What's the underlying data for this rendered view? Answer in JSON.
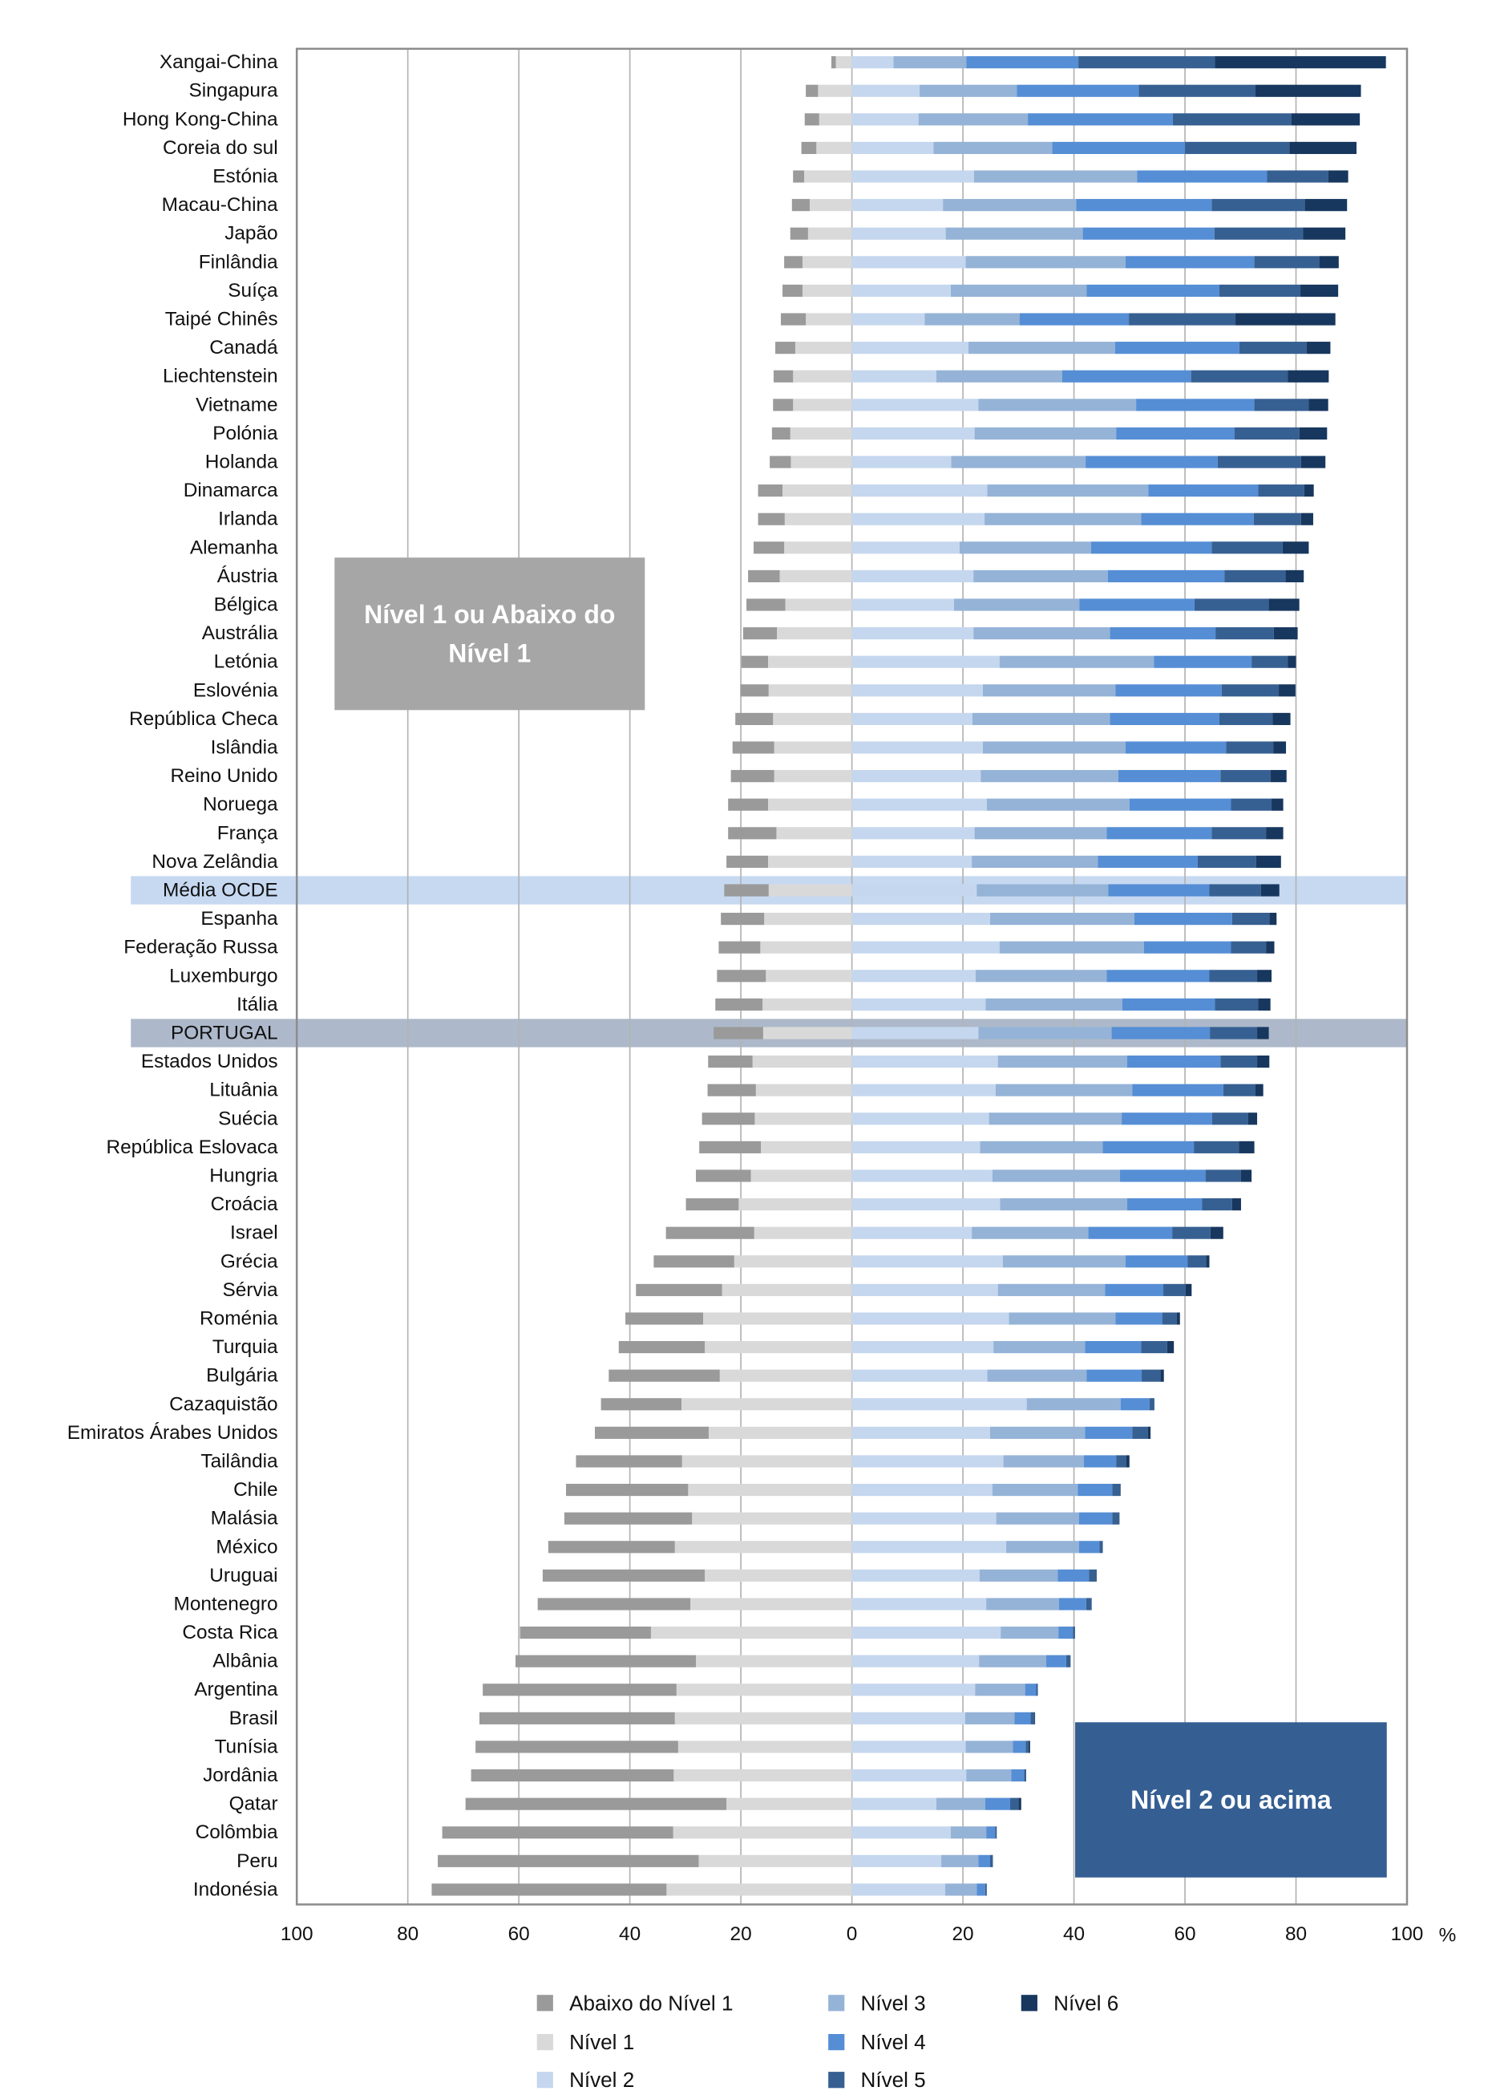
{
  "chart_data": {
    "type": "diverging-stacked-bar",
    "categories": [
      "Xangai-China",
      "Singapura",
      "Hong Kong-China",
      "Coreia do sul",
      "Estónia",
      "Macau-China",
      "Japão",
      "Finlândia",
      "Suíça",
      "Taipé Chinês",
      "Canadá",
      "Liechtenstein",
      "Vietname",
      "Polónia",
      "Holanda",
      "Dinamarca",
      "Irlanda",
      "Alemanha",
      "Áustria",
      "Bélgica",
      "Austrália",
      "Letónia",
      "Eslovénia",
      "República Checa",
      "Islândia",
      "Reino Unido",
      "Noruega",
      "França",
      "Nova Zelândia",
      "Média OCDE",
      "Espanha",
      "Federação Russa",
      "Luxemburgo",
      "Itália",
      "PORTUGAL",
      "Estados Unidos",
      "Lituânia",
      "Suécia",
      "República Eslovaca",
      "Hungria",
      "Croácia",
      "Israel",
      "Grécia",
      "Sérvia",
      "Roménia",
      "Turquia",
      "Bulgária",
      "Cazaquistão",
      "Emiratos Árabes Unidos",
      "Tailândia",
      "Chile",
      "Malásia",
      "México",
      "Uruguai",
      "Montenegro",
      "Costa Rica",
      "Albânia",
      "Argentina",
      "Brasil",
      "Tunísia",
      "Jordânia",
      "Qatar",
      "Colômbia",
      "Peru",
      "Indonésia"
    ],
    "series": [
      {
        "name": "Abaixo do Nível 1",
        "color": "#9a9a9a",
        "direction": "left",
        "values": [
          0.8,
          2.2,
          2.6,
          2.7,
          2.0,
          3.2,
          3.2,
          3.3,
          3.6,
          4.5,
          3.6,
          3.5,
          3.6,
          3.3,
          3.8,
          4.4,
          4.8,
          5.5,
          5.7,
          7.0,
          6.1,
          4.8,
          5.1,
          6.8,
          7.5,
          7.8,
          7.2,
          8.7,
          7.5,
          8.0,
          7.8,
          7.5,
          8.8,
          8.5,
          8.9,
          8.0,
          8.7,
          9.5,
          11.1,
          9.9,
          9.5,
          15.9,
          14.5,
          15.5,
          14.0,
          15.5,
          20.0,
          14.5,
          20.5,
          19.1,
          22.0,
          23.0,
          22.8,
          29.2,
          27.5,
          23.6,
          32.5,
          34.9,
          35.2,
          36.5,
          36.5,
          47.0,
          41.6,
          47.0,
          42.3
        ]
      },
      {
        "name": "Nível 1",
        "color": "#d9d9d9",
        "direction": "left",
        "values": [
          2.9,
          6.1,
          5.9,
          6.4,
          8.6,
          7.6,
          7.9,
          8.9,
          8.9,
          8.3,
          10.2,
          10.6,
          10.6,
          11.1,
          11.0,
          12.5,
          12.1,
          12.2,
          13.0,
          12.0,
          13.5,
          15.1,
          15.0,
          14.2,
          14.0,
          14.0,
          15.1,
          13.6,
          15.1,
          15.0,
          15.8,
          16.5,
          15.5,
          16.1,
          16.0,
          17.9,
          17.3,
          17.5,
          16.4,
          18.2,
          20.4,
          17.6,
          21.2,
          23.4,
          26.8,
          26.5,
          23.8,
          30.7,
          25.8,
          30.6,
          29.5,
          28.8,
          31.9,
          26.5,
          29.1,
          36.2,
          28.1,
          31.6,
          31.9,
          31.3,
          32.1,
          22.6,
          32.2,
          27.6,
          33.4
        ]
      },
      {
        "name": "Nível 2",
        "color": "#c5d7ee",
        "direction": "right",
        "values": [
          7.5,
          12.2,
          12.0,
          14.7,
          22.0,
          16.4,
          16.9,
          20.5,
          17.8,
          13.1,
          21.0,
          15.2,
          22.8,
          22.1,
          17.9,
          24.4,
          23.9,
          19.4,
          21.9,
          18.4,
          21.9,
          26.6,
          23.6,
          21.7,
          23.6,
          23.2,
          24.3,
          22.1,
          21.6,
          22.5,
          24.9,
          26.6,
          22.3,
          24.1,
          22.8,
          26.3,
          25.9,
          24.7,
          23.1,
          25.3,
          26.7,
          21.6,
          27.2,
          26.3,
          28.3,
          25.5,
          24.4,
          31.5,
          24.9,
          27.3,
          25.3,
          26.0,
          27.8,
          23.0,
          24.2,
          26.8,
          22.9,
          22.2,
          20.4,
          20.5,
          20.6,
          15.2,
          17.8,
          16.1,
          16.8
        ]
      },
      {
        "name": "Nível 3",
        "color": "#95b3d7",
        "direction": "right",
        "values": [
          13.1,
          17.5,
          19.7,
          21.4,
          29.4,
          24.0,
          24.7,
          28.8,
          24.5,
          17.1,
          26.4,
          22.7,
          28.4,
          25.5,
          24.2,
          29.0,
          28.2,
          23.7,
          24.2,
          22.6,
          24.6,
          27.8,
          23.9,
          24.8,
          25.7,
          24.8,
          25.7,
          23.8,
          22.7,
          23.7,
          26.0,
          26.0,
          23.6,
          24.6,
          24.0,
          23.3,
          24.6,
          23.9,
          22.1,
          23.0,
          22.9,
          21.0,
          22.1,
          19.3,
          19.2,
          16.5,
          17.9,
          16.9,
          17.1,
          14.5,
          15.4,
          14.9,
          13.1,
          14.1,
          13.1,
          10.4,
          12.1,
          9.0,
          8.9,
          8.5,
          8.1,
          8.8,
          6.4,
          6.7,
          5.7
        ]
      },
      {
        "name": "Nível 4",
        "color": "#558ed5",
        "direction": "right",
        "values": [
          20.2,
          22.0,
          26.1,
          23.9,
          23.4,
          24.4,
          23.7,
          23.2,
          23.9,
          19.7,
          22.4,
          23.2,
          21.3,
          21.3,
          23.8,
          19.8,
          20.3,
          21.7,
          21.0,
          20.7,
          19.0,
          17.6,
          19.1,
          19.7,
          18.1,
          18.4,
          18.3,
          18.9,
          18.0,
          18.2,
          17.6,
          15.7,
          18.5,
          16.7,
          17.7,
          16.8,
          16.4,
          16.3,
          16.4,
          15.4,
          13.5,
          15.1,
          11.2,
          10.5,
          8.4,
          10.1,
          9.9,
          5.2,
          8.5,
          5.8,
          6.2,
          6.0,
          3.7,
          5.6,
          4.9,
          2.6,
          3.6,
          2.0,
          2.9,
          2.3,
          2.3,
          4.5,
          1.6,
          2.1,
          1.5
        ]
      },
      {
        "name": "Nível 5",
        "color": "#376092",
        "direction": "right",
        "values": [
          24.6,
          21.0,
          21.4,
          18.8,
          11.0,
          16.8,
          16.0,
          11.7,
          14.6,
          19.2,
          12.1,
          17.4,
          9.8,
          11.7,
          15.0,
          8.3,
          8.5,
          12.8,
          11.0,
          13.4,
          10.5,
          6.5,
          10.3,
          9.6,
          8.5,
          9.0,
          7.3,
          9.8,
          10.5,
          9.3,
          6.7,
          6.3,
          8.6,
          7.8,
          8.5,
          6.6,
          5.8,
          6.5,
          8.1,
          6.4,
          5.4,
          6.9,
          3.3,
          4.0,
          2.6,
          4.7,
          3.4,
          0.9,
          2.8,
          1.8,
          1.4,
          1.2,
          0.6,
          1.3,
          1.0,
          0.4,
          0.8,
          0.3,
          0.7,
          0.5,
          0.4,
          1.5,
          0.3,
          0.5,
          0.3
        ]
      },
      {
        "name": "Nível 6",
        "color": "#17375e",
        "direction": "right",
        "values": [
          30.8,
          19.0,
          12.3,
          12.1,
          3.6,
          7.6,
          7.6,
          3.5,
          6.8,
          18.0,
          4.3,
          7.4,
          3.5,
          5.0,
          4.4,
          1.7,
          2.2,
          4.7,
          3.3,
          5.5,
          4.3,
          1.5,
          3.0,
          3.2,
          2.3,
          2.9,
          2.1,
          3.1,
          4.5,
          3.3,
          1.3,
          1.5,
          2.6,
          2.2,
          2.1,
          2.2,
          1.4,
          1.6,
          2.8,
          1.9,
          1.6,
          2.3,
          0.6,
          1.1,
          0.6,
          1.2,
          0.6,
          0.0,
          0.5,
          0.6,
          0.1,
          0.1,
          0.0,
          0.1,
          0.0,
          0.0,
          0.0,
          0.0,
          0.1,
          0.3,
          0.0,
          0.5,
          0.0,
          0.0,
          0.0
        ]
      }
    ],
    "xlim": [
      -100,
      100
    ],
    "xticks": [
      {
        "value": -100,
        "label": "100"
      },
      {
        "value": -80,
        "label": "80"
      },
      {
        "value": -60,
        "label": "60"
      },
      {
        "value": -40,
        "label": "40"
      },
      {
        "value": -20,
        "label": "20"
      },
      0,
      20,
      40,
      60,
      80,
      100
    ],
    "x_unit": "%",
    "grid": true,
    "highlight_rows": [
      {
        "index": 29,
        "color": "#c6d9f1"
      },
      {
        "index": 34,
        "color": "#adb9ca"
      }
    ],
    "annotation_left": {
      "lines": [
        "Nível 1 ou Abaixo do",
        "Nível 1"
      ],
      "color": "#a6a6a6"
    },
    "annotation_right": {
      "lines": [
        "Nível 2 ou acima"
      ],
      "color": "#355e93"
    },
    "legend": "bottom"
  }
}
